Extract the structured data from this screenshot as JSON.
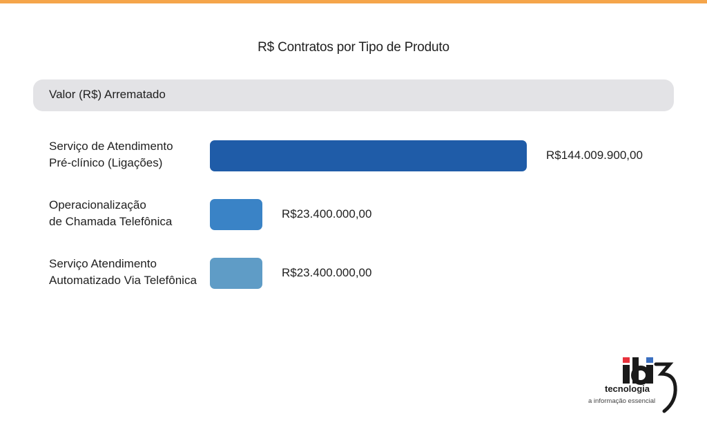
{
  "chart_data": {
    "type": "bar",
    "orientation": "horizontal",
    "title": "R$ Contratos por Tipo de Produto",
    "series_header": "Valor (R$) Arrematado",
    "categories": [
      "Serviço de Atendimento\nPré-clínico (Ligações)",
      "Operacionalização\nde Chamada Telefônica",
      "Serviço Atendimento\nAutomatizado Via Telefônica"
    ],
    "values": [
      144009900,
      23400000,
      23400000
    ],
    "value_labels": [
      "R$144.009.900,00",
      "R$23.400.000,00",
      "R$23.400.000,00"
    ],
    "colors": [
      "#1f5ca8",
      "#3a83c6",
      "#5f9cc6"
    ],
    "grid": false
  },
  "colors": {
    "top_line": "#f5a54a",
    "header_bar": "#e3e3e6"
  },
  "logo": {
    "name": "ibiz",
    "lines": [
      "tecnologia",
      "a informação essencial"
    ]
  }
}
